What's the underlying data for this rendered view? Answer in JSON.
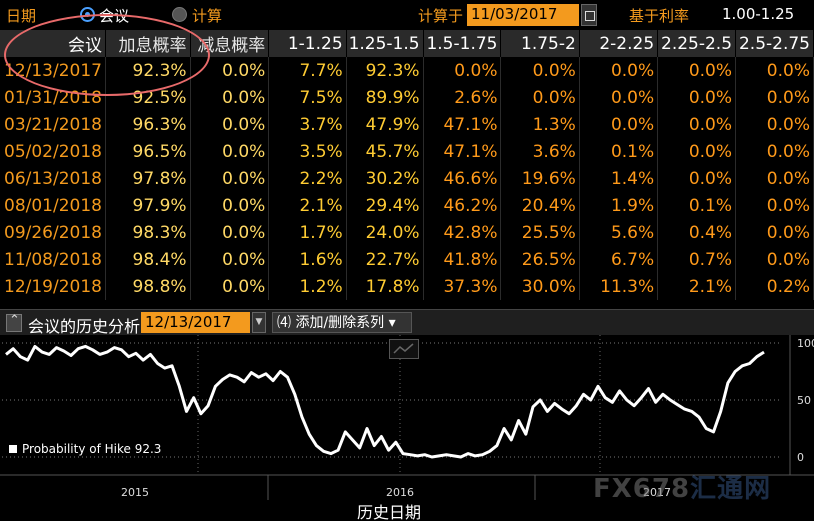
{
  "header": {
    "date_label": "日期",
    "radio_meeting": "会议",
    "radio_calc": "计算",
    "calc_label": "计算于",
    "calc_date": "11/03/2017",
    "base_rate_label": "基于利率",
    "base_rate_value": "1.00-1.25"
  },
  "table": {
    "columns": [
      "会议",
      "加息概率",
      "减息概率",
      "1-1.25",
      "1.25-1.5",
      "1.5-1.75",
      "1.75-2",
      "2-2.25",
      "2.25-2.5",
      "2.5-2.75"
    ],
    "rows": [
      [
        "12/13/2017",
        "92.3%",
        "0.0%",
        "7.7%",
        "92.3%",
        "0.0%",
        "0.0%",
        "0.0%",
        "0.0%",
        "0.0%"
      ],
      [
        "01/31/2018",
        "92.5%",
        "0.0%",
        "7.5%",
        "89.9%",
        "2.6%",
        "0.0%",
        "0.0%",
        "0.0%",
        "0.0%"
      ],
      [
        "03/21/2018",
        "96.3%",
        "0.0%",
        "3.7%",
        "47.9%",
        "47.1%",
        "1.3%",
        "0.0%",
        "0.0%",
        "0.0%"
      ],
      [
        "05/02/2018",
        "96.5%",
        "0.0%",
        "3.5%",
        "45.7%",
        "47.1%",
        "3.6%",
        "0.1%",
        "0.0%",
        "0.0%"
      ],
      [
        "06/13/2018",
        "97.8%",
        "0.0%",
        "2.2%",
        "30.2%",
        "46.6%",
        "19.6%",
        "1.4%",
        "0.0%",
        "0.0%"
      ],
      [
        "08/01/2018",
        "97.9%",
        "0.0%",
        "2.1%",
        "29.4%",
        "46.2%",
        "20.4%",
        "1.9%",
        "0.1%",
        "0.0%"
      ],
      [
        "09/26/2018",
        "98.3%",
        "0.0%",
        "1.7%",
        "24.0%",
        "42.8%",
        "25.5%",
        "5.6%",
        "0.4%",
        "0.0%"
      ],
      [
        "11/08/2018",
        "98.4%",
        "0.0%",
        "1.6%",
        "22.7%",
        "41.8%",
        "26.5%",
        "6.7%",
        "0.7%",
        "0.0%"
      ],
      [
        "12/19/2018",
        "98.8%",
        "0.0%",
        "1.2%",
        "17.8%",
        "37.3%",
        "30.0%",
        "11.3%",
        "2.1%",
        "0.2%"
      ]
    ]
  },
  "panel": {
    "title": "会议的历史分析",
    "date": "12/13/2017",
    "add_series": "添加/删除系列"
  },
  "chart_data": {
    "type": "line",
    "xlabel": "历史日期",
    "x_tick_labels": [
      "2015",
      "2016",
      "2017"
    ],
    "y_tick_labels": [
      "100",
      "50",
      "0"
    ],
    "ylim": [
      0,
      100
    ],
    "grid": true,
    "legend_text": "Probability of Hike 92.3",
    "legend_placement": "bottom-left",
    "series": [
      {
        "name": "Probability of Hike",
        "color": "#ffffff",
        "values": [
          90,
          95,
          88,
          85,
          97,
          92,
          90,
          96,
          93,
          89,
          95,
          97,
          94,
          90,
          92,
          96,
          94,
          88,
          91,
          85,
          90,
          82,
          78,
          80,
          62,
          40,
          52,
          38,
          45,
          62,
          68,
          72,
          70,
          66,
          74,
          70,
          73,
          67,
          75,
          70,
          55,
          35,
          20,
          10,
          5,
          3,
          6,
          22,
          15,
          8,
          25,
          10,
          18,
          6,
          13,
          3,
          2,
          1,
          2,
          0,
          1,
          2,
          1,
          0,
          3,
          1,
          2,
          5,
          10,
          25,
          15,
          32,
          20,
          44,
          50,
          40,
          47,
          42,
          38,
          45,
          55,
          50,
          62,
          52,
          48,
          58,
          50,
          45,
          52,
          60,
          48,
          55,
          50,
          46,
          42,
          40,
          35,
          25,
          22,
          40,
          65,
          75,
          80,
          82,
          88,
          92
        ]
      }
    ]
  },
  "watermark": {
    "brand": "FX678",
    "cn": "汇通网"
  }
}
